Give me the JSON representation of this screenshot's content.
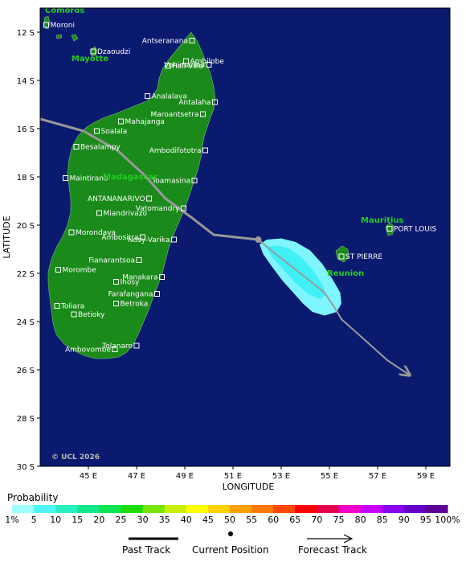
{
  "map": {
    "lon_range": [
      43,
      60
    ],
    "lat_range": [
      -30,
      -11
    ],
    "x_ticks": [
      {
        "lon": 45,
        "label": "45 E"
      },
      {
        "lon": 47,
        "label": "47 E"
      },
      {
        "lon": 49,
        "label": "49 E"
      },
      {
        "lon": 51,
        "label": "51 E"
      },
      {
        "lon": 53,
        "label": "53 E"
      },
      {
        "lon": 55,
        "label": "55 E"
      },
      {
        "lon": 57,
        "label": "57 E"
      },
      {
        "lon": 59,
        "label": "59 E"
      }
    ],
    "y_ticks": [
      {
        "lat": -12,
        "label": "12 S"
      },
      {
        "lat": -14,
        "label": "14 S"
      },
      {
        "lat": -16,
        "label": "16 S"
      },
      {
        "lat": -18,
        "label": "18 S"
      },
      {
        "lat": -20,
        "label": "20 S"
      },
      {
        "lat": -22,
        "label": "22 S"
      },
      {
        "lat": -24,
        "label": "24 S"
      },
      {
        "lat": -26,
        "label": "26 S"
      },
      {
        "lat": -28,
        "label": "28 S"
      },
      {
        "lat": -30,
        "label": "30 S"
      }
    ],
    "x_title": "LONGITUDE",
    "y_title": "LATITUDE",
    "copyright": "© UCL 2026",
    "colors": {
      "ocean": "#0a1a6e",
      "land": "#1a8a1a",
      "label_green": "#22cc22",
      "track": "#999999"
    },
    "regions": [
      {
        "name": "Comoros",
        "lon": 43.2,
        "lat": -11.2
      },
      {
        "name": "Mayotte",
        "lon": 44.3,
        "lat": -13.2
      },
      {
        "name": "Madagascar",
        "lon": 45.6,
        "lat": -18.1
      },
      {
        "name": "Mauritius",
        "lon": 56.3,
        "lat": -19.9
      },
      {
        "name": "Reunion",
        "lon": 54.9,
        "lat": -22.1
      }
    ],
    "cities": [
      {
        "name": "Moroni",
        "lon": 43.25,
        "lat": -11.7,
        "side": "right"
      },
      {
        "name": "Dzaoudzi",
        "lon": 45.2,
        "lat": -12.8,
        "side": "right"
      },
      {
        "name": "Antseranana",
        "lon": 49.3,
        "lat": -12.35,
        "side": "left"
      },
      {
        "name": "Ambilobe",
        "lon": 49.05,
        "lat": -13.2,
        "side": "right"
      },
      {
        "name": "Hell-Ville",
        "lon": 48.3,
        "lat": -13.4,
        "side": "right"
      },
      {
        "name": "Vohimarina",
        "lon": 50.0,
        "lat": -13.35,
        "side": "left"
      },
      {
        "name": "Analalava",
        "lon": 47.45,
        "lat": -14.65,
        "side": "right"
      },
      {
        "name": "Antalaha",
        "lon": 50.25,
        "lat": -14.9,
        "side": "left"
      },
      {
        "name": "Maroantsetra",
        "lon": 49.75,
        "lat": -15.4,
        "side": "left"
      },
      {
        "name": "Mahajanga",
        "lon": 46.35,
        "lat": -15.7,
        "side": "right"
      },
      {
        "name": "Soalala",
        "lon": 45.35,
        "lat": -16.1,
        "side": "right"
      },
      {
        "name": "Besalampy",
        "lon": 44.5,
        "lat": -16.75,
        "side": "right"
      },
      {
        "name": "Ambodifototra",
        "lon": 49.85,
        "lat": -16.9,
        "side": "left"
      },
      {
        "name": "Maintirano",
        "lon": 44.05,
        "lat": -18.05,
        "side": "right"
      },
      {
        "name": "Toamasina",
        "lon": 49.4,
        "lat": -18.15,
        "side": "left"
      },
      {
        "name": "ANTANANARIVO",
        "lon": 47.52,
        "lat": -18.9,
        "side": "left"
      },
      {
        "name": "Vatomandry",
        "lon": 48.95,
        "lat": -19.3,
        "side": "left"
      },
      {
        "name": "Miandrivazo",
        "lon": 45.45,
        "lat": -19.5,
        "side": "right"
      },
      {
        "name": "Morondava",
        "lon": 44.3,
        "lat": -20.3,
        "side": "right"
      },
      {
        "name": "Ambositra",
        "lon": 47.25,
        "lat": -20.5,
        "side": "left"
      },
      {
        "name": "Nosy-Varika",
        "lon": 48.55,
        "lat": -20.6,
        "side": "left"
      },
      {
        "name": "Fianarantsoa",
        "lon": 47.1,
        "lat": -21.45,
        "side": "left"
      },
      {
        "name": "Morombe",
        "lon": 43.75,
        "lat": -21.85,
        "side": "right"
      },
      {
        "name": "Manakara",
        "lon": 48.05,
        "lat": -22.15,
        "side": "left"
      },
      {
        "name": "Ihosy",
        "lon": 46.15,
        "lat": -22.35,
        "side": "right"
      },
      {
        "name": "Farafangana",
        "lon": 47.85,
        "lat": -22.85,
        "side": "left"
      },
      {
        "name": "Betroka",
        "lon": 46.15,
        "lat": -23.25,
        "side": "right"
      },
      {
        "name": "Toliara",
        "lon": 43.7,
        "lat": -23.35,
        "side": "right"
      },
      {
        "name": "Betioky",
        "lon": 44.4,
        "lat": -23.7,
        "side": "right"
      },
      {
        "name": "Tolanaro",
        "lon": 47.0,
        "lat": -25.0,
        "side": "left"
      },
      {
        "name": "Ambovombe",
        "lon": 46.1,
        "lat": -25.15,
        "side": "left"
      },
      {
        "name": "PORT LOUIS",
        "lon": 57.5,
        "lat": -20.15,
        "side": "right"
      },
      {
        "name": "ST PIERRE",
        "lon": 55.5,
        "lat": -21.3,
        "side": "right"
      }
    ],
    "past_track": [
      [
        43,
        -15.6
      ],
      [
        44.8,
        -16.1
      ],
      [
        46.2,
        -16.9
      ],
      [
        47.3,
        -17.9
      ],
      [
        48.2,
        -18.9
      ],
      [
        49.3,
        -19.7
      ],
      [
        50.2,
        -20.4
      ],
      [
        51.1,
        -20.5
      ],
      [
        52.05,
        -20.6
      ]
    ],
    "current_position": [
      52.05,
      -20.6
    ],
    "forecast_track": [
      [
        52.05,
        -20.6
      ],
      [
        52.9,
        -21.3
      ],
      [
        53.8,
        -22.0
      ],
      [
        54.8,
        -22.8
      ],
      [
        55.2,
        -23.4
      ],
      [
        55.5,
        -23.9
      ],
      [
        56.4,
        -24.7
      ],
      [
        57.4,
        -25.6
      ],
      [
        58.3,
        -26.2
      ]
    ],
    "probability_zone": {
      "outer": [
        [
          52.1,
          -20.8
        ],
        [
          52.4,
          -20.6
        ],
        [
          53.0,
          -20.55
        ],
        [
          53.6,
          -20.7
        ],
        [
          54.2,
          -21.05
        ],
        [
          54.7,
          -21.6
        ],
        [
          55.1,
          -22.2
        ],
        [
          55.45,
          -22.8
        ],
        [
          55.5,
          -23.25
        ],
        [
          55.3,
          -23.6
        ],
        [
          54.8,
          -23.75
        ],
        [
          54.3,
          -23.6
        ],
        [
          53.9,
          -23.25
        ],
        [
          53.5,
          -22.8
        ],
        [
          53.05,
          -22.3
        ],
        [
          52.6,
          -21.7
        ],
        [
          52.25,
          -21.2
        ]
      ],
      "inner": [
        [
          52.35,
          -20.9
        ],
        [
          52.8,
          -20.85
        ],
        [
          53.3,
          -20.95
        ],
        [
          53.8,
          -21.3
        ],
        [
          54.3,
          -21.85
        ],
        [
          54.7,
          -22.45
        ],
        [
          54.85,
          -22.9
        ],
        [
          54.6,
          -23.05
        ],
        [
          54.1,
          -22.85
        ],
        [
          53.6,
          -22.4
        ],
        [
          53.1,
          -21.85
        ],
        [
          52.6,
          -21.3
        ]
      ],
      "outer_color": "#7ff5ff",
      "inner_color": "#3ff0f5"
    }
  },
  "legend": {
    "title": "Probability",
    "bins": [
      {
        "label": "1%",
        "color": "#a0ffff"
      },
      {
        "label": "5",
        "color": "#50f5f5"
      },
      {
        "label": "10",
        "color": "#28f0c0"
      },
      {
        "label": "15",
        "color": "#14e68c"
      },
      {
        "label": "20",
        "color": "#0ae650"
      },
      {
        "label": "25",
        "color": "#1edc00"
      },
      {
        "label": "30",
        "color": "#78e600"
      },
      {
        "label": "35",
        "color": "#c8f000"
      },
      {
        "label": "40",
        "color": "#ffff00"
      },
      {
        "label": "45",
        "color": "#ffd200"
      },
      {
        "label": "50",
        "color": "#ffa000"
      },
      {
        "label": "55",
        "color": "#ff7800"
      },
      {
        "label": "60",
        "color": "#ff4600"
      },
      {
        "label": "65",
        "color": "#ff0000"
      },
      {
        "label": "70",
        "color": "#e60050"
      },
      {
        "label": "75",
        "color": "#f000c8"
      },
      {
        "label": "80",
        "color": "#c800ff"
      },
      {
        "label": "85",
        "color": "#8c00f0"
      },
      {
        "label": "90",
        "color": "#6400c8"
      },
      {
        "label": "95",
        "color": "#5a0096"
      },
      {
        "label": "100%",
        "color": "#600060"
      }
    ]
  },
  "key": {
    "past_label": "Past Track",
    "current_label": "Current Position",
    "forecast_label": "Forecast Track"
  }
}
